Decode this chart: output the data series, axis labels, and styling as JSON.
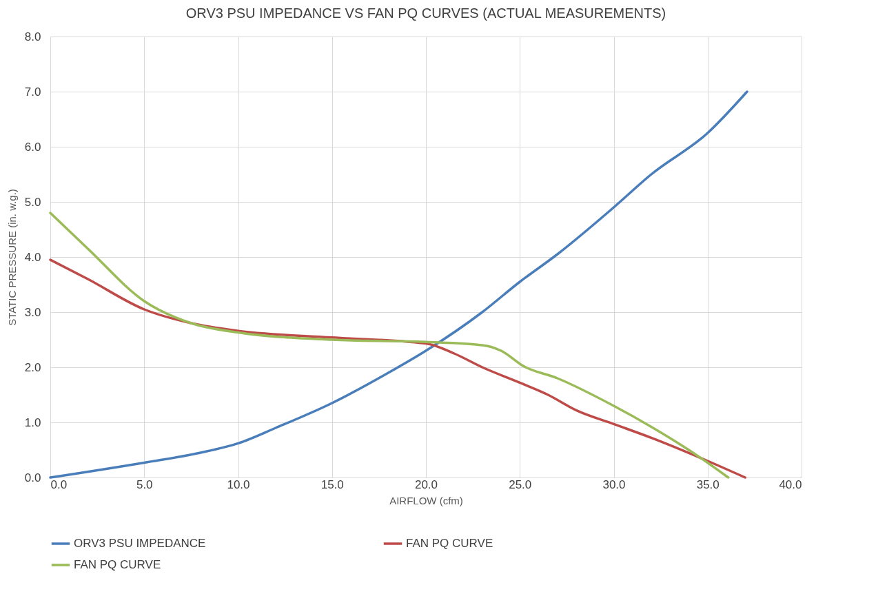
{
  "chart_data": {
    "type": "line",
    "title": "ORV3 PSU IMPEDANCE VS FAN PQ CURVES (ACTUAL MEASUREMENTS)",
    "xlabel": "AIRFLOW (cfm)",
    "ylabel": "STATIC PRESSURE (in. w.g.)",
    "xlim": [
      0,
      40
    ],
    "ylim": [
      0,
      8
    ],
    "xticks": [
      {
        "value": 0,
        "label": "0.0"
      },
      {
        "value": 5,
        "label": "5.0"
      },
      {
        "value": 10,
        "label": "10.0"
      },
      {
        "value": 15,
        "label": "15.0"
      },
      {
        "value": 20,
        "label": "20.0"
      },
      {
        "value": 25,
        "label": "25.0"
      },
      {
        "value": 30,
        "label": "30.0"
      },
      {
        "value": 35,
        "label": "35.0"
      },
      {
        "value": 40,
        "label": "40.0"
      }
    ],
    "yticks": [
      {
        "value": 0,
        "label": "0.0"
      },
      {
        "value": 1,
        "label": "1.0"
      },
      {
        "value": 2,
        "label": "2.0"
      },
      {
        "value": 3,
        "label": "3.0"
      },
      {
        "value": 4,
        "label": "4.0"
      },
      {
        "value": 5,
        "label": "5.0"
      },
      {
        "value": 6,
        "label": "6.0"
      },
      {
        "value": 7,
        "label": "7.0"
      },
      {
        "value": 8,
        "label": "8.0"
      }
    ],
    "grid": true,
    "legend": "bottom",
    "marker": "none",
    "line_style": "solid",
    "series": [
      {
        "name": "ORV3 PSU IMPEDANCE",
        "color": "#4a7ebb",
        "x": [
          0,
          5,
          8,
          10,
          12,
          15,
          18,
          20,
          23,
          25,
          27,
          30,
          32,
          35,
          37.1
        ],
        "values": [
          0,
          0.27,
          0.45,
          0.62,
          0.9,
          1.35,
          1.9,
          2.3,
          3.0,
          3.55,
          4.05,
          4.9,
          5.5,
          6.25,
          7.0
        ]
      },
      {
        "name": "FAN PQ CURVE",
        "color": "#be4b48",
        "x": [
          0,
          2,
          5,
          7.5,
          10,
          15,
          20,
          21.5,
          23,
          25,
          26.5,
          28,
          30,
          32,
          35,
          37
        ],
        "values": [
          3.95,
          3.6,
          3.05,
          2.8,
          2.66,
          2.54,
          2.43,
          2.25,
          2.0,
          1.72,
          1.5,
          1.22,
          0.97,
          0.72,
          0.3,
          0
        ]
      },
      {
        "name": "FAN PQ CURVE",
        "color": "#9bbb59",
        "x": [
          0,
          2,
          5,
          7.5,
          10,
          15,
          20,
          23,
          24,
          25.2,
          27,
          30,
          32,
          34,
          36.1
        ],
        "values": [
          4.8,
          4.15,
          3.2,
          2.8,
          2.63,
          2.5,
          2.46,
          2.4,
          2.3,
          2.02,
          1.8,
          1.3,
          0.92,
          0.5,
          0
        ]
      }
    ]
  }
}
